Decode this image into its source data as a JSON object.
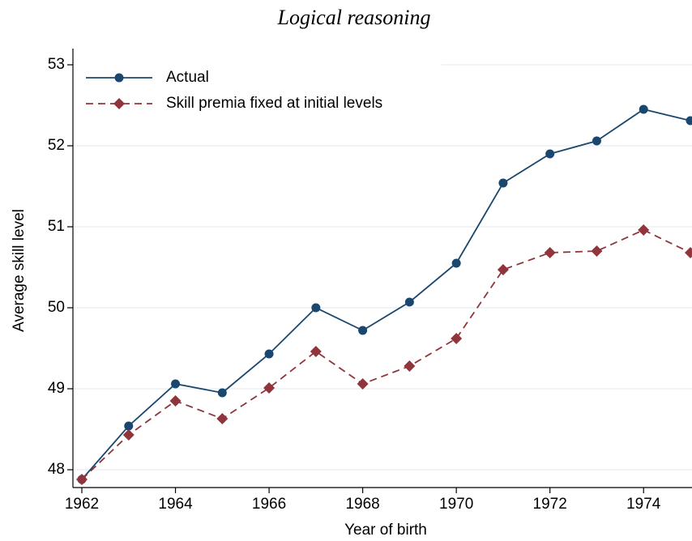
{
  "chart_data": {
    "type": "line",
    "title": "Logical reasoning",
    "x_label": "Year of birth",
    "y_label": "Average skill level",
    "x": [
      1962,
      1963,
      1964,
      1965,
      1966,
      1967,
      1968,
      1969,
      1970,
      1971,
      1972,
      1973,
      1974,
      1975
    ],
    "series": [
      {
        "name": "Actual",
        "color": "#1a476f",
        "marker": "circle",
        "dashed": false,
        "values": [
          47.88,
          48.54,
          49.06,
          48.95,
          49.43,
          50.0,
          49.72,
          50.07,
          50.55,
          51.54,
          51.9,
          52.06,
          52.45,
          52.31
        ]
      },
      {
        "name": "Skill premia fixed at initial levels",
        "color": "#90353b",
        "marker": "diamond",
        "dashed": true,
        "values": [
          47.88,
          48.43,
          48.85,
          48.63,
          49.01,
          49.46,
          49.06,
          49.28,
          49.62,
          50.47,
          50.68,
          50.7,
          50.96,
          50.68
        ]
      }
    ],
    "xlim": [
      1962,
      1975
    ],
    "xticks": [
      1962,
      1964,
      1966,
      1968,
      1970,
      1972,
      1974
    ],
    "ylim": [
      47.8,
      53.2
    ],
    "yticks": [
      48,
      49,
      50,
      51,
      52,
      53
    ],
    "grid": true,
    "legend": "top-left"
  }
}
